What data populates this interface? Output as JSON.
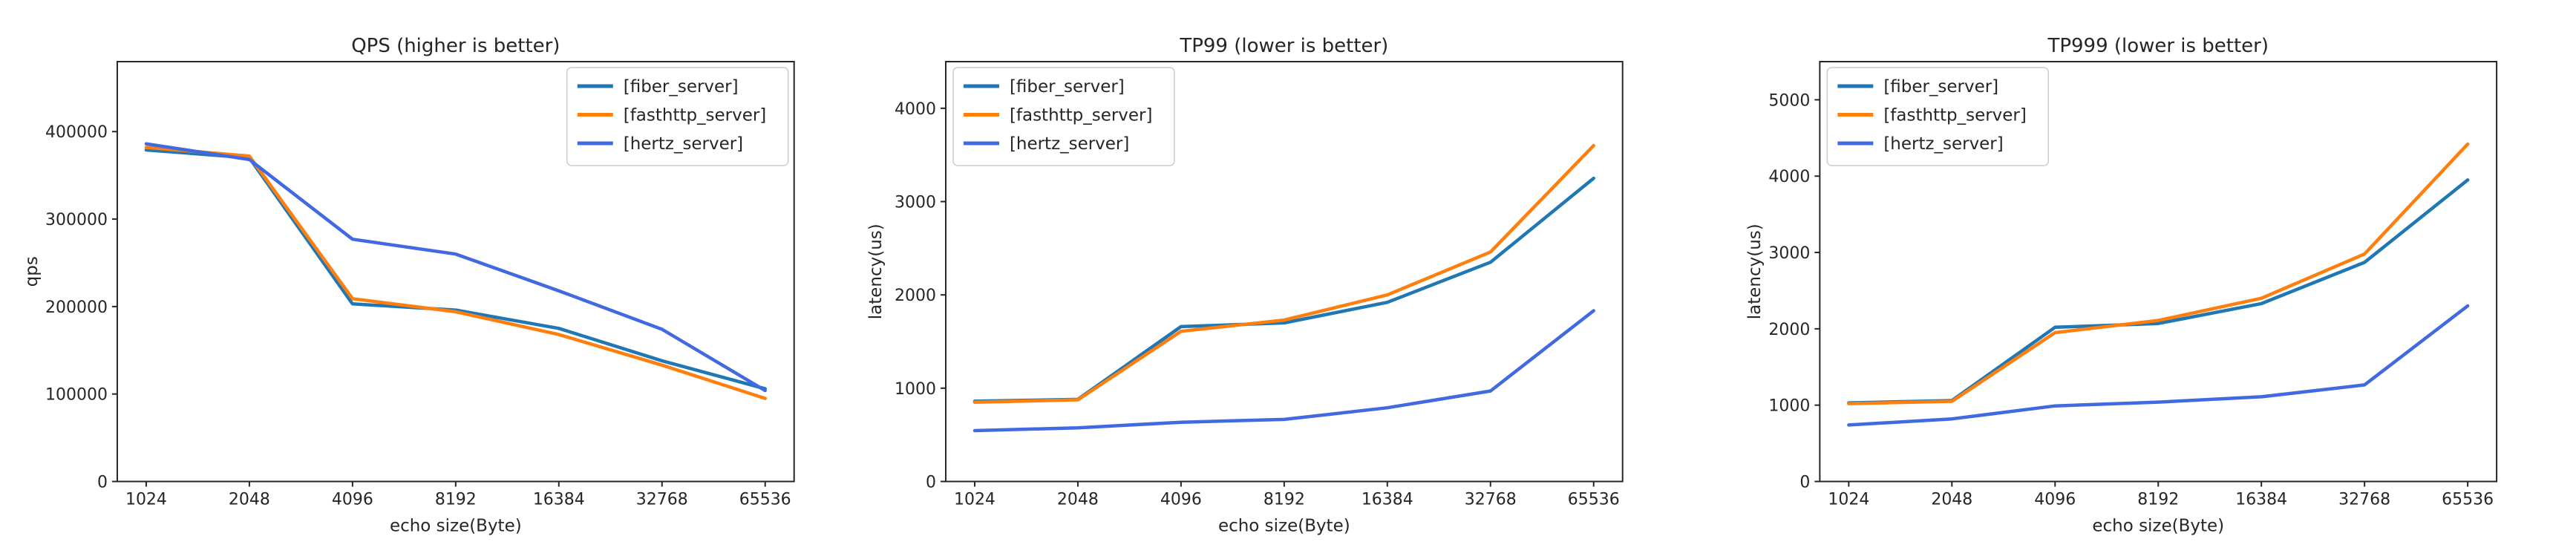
{
  "page": {
    "background": "#ffffff",
    "text_color": "#262626",
    "axis_color": "#262626"
  },
  "chart_data": [
    {
      "type": "line",
      "title": "QPS (higher is better)",
      "xlabel": "echo size(Byte)",
      "ylabel": "qps",
      "categories": [
        "1024",
        "2048",
        "4096",
        "8192",
        "16384",
        "32768",
        "65536"
      ],
      "ytick_labels": [
        "0",
        "100000",
        "200000",
        "300000",
        "400000"
      ],
      "yticks": [
        0,
        100000,
        200000,
        300000,
        400000
      ],
      "ylim": [
        0,
        480000
      ],
      "grid": false,
      "legend_position": "upper right",
      "series": [
        {
          "name": "[fiber_server]",
          "color": "#1f77b4",
          "values": [
            379000,
            370000,
            203000,
            196000,
            175000,
            138000,
            106000
          ]
        },
        {
          "name": "[fasthttp_server]",
          "color": "#ff7f0e",
          "values": [
            382000,
            372000,
            209000,
            194000,
            168000,
            133000,
            95000
          ]
        },
        {
          "name": "[hertz_server]",
          "color": "#4169e1",
          "values": [
            386000,
            368000,
            277000,
            260000,
            218000,
            174000,
            104000
          ]
        }
      ]
    },
    {
      "type": "line",
      "title": "TP99 (lower is better)",
      "xlabel": "echo size(Byte)",
      "ylabel": "latency(us)",
      "categories": [
        "1024",
        "2048",
        "4096",
        "8192",
        "16384",
        "32768",
        "65536"
      ],
      "ytick_labels": [
        "0",
        "1000",
        "2000",
        "3000",
        "4000"
      ],
      "yticks": [
        0,
        1000,
        2000,
        3000,
        4000
      ],
      "ylim": [
        0,
        4500
      ],
      "grid": false,
      "legend_position": "upper left",
      "series": [
        {
          "name": "[fiber_server]",
          "color": "#1f77b4",
          "values": [
            860,
            880,
            1660,
            1700,
            1920,
            2350,
            3250
          ]
        },
        {
          "name": "[fasthttp_server]",
          "color": "#ff7f0e",
          "values": [
            850,
            875,
            1610,
            1730,
            2000,
            2460,
            3600
          ]
        },
        {
          "name": "[hertz_server]",
          "color": "#4169e1",
          "values": [
            545,
            575,
            635,
            665,
            790,
            970,
            1830
          ]
        }
      ]
    },
    {
      "type": "line",
      "title": "TP999 (lower is better)",
      "xlabel": "echo size(Byte)",
      "ylabel": "latency(us)",
      "categories": [
        "1024",
        "2048",
        "4096",
        "8192",
        "16384",
        "32768",
        "65536"
      ],
      "ytick_labels": [
        "0",
        "1000",
        "2000",
        "3000",
        "4000",
        "5000"
      ],
      "yticks": [
        0,
        1000,
        2000,
        3000,
        4000,
        5000
      ],
      "ylim": [
        0,
        5500
      ],
      "grid": false,
      "legend_position": "upper left",
      "series": [
        {
          "name": "[fiber_server]",
          "color": "#1f77b4",
          "values": [
            1030,
            1060,
            2020,
            2070,
            2330,
            2870,
            3950
          ]
        },
        {
          "name": "[fasthttp_server]",
          "color": "#ff7f0e",
          "values": [
            1020,
            1050,
            1950,
            2110,
            2400,
            2980,
            4420
          ]
        },
        {
          "name": "[hertz_server]",
          "color": "#4169e1",
          "values": [
            740,
            820,
            990,
            1040,
            1110,
            1265,
            2300
          ]
        }
      ]
    }
  ]
}
